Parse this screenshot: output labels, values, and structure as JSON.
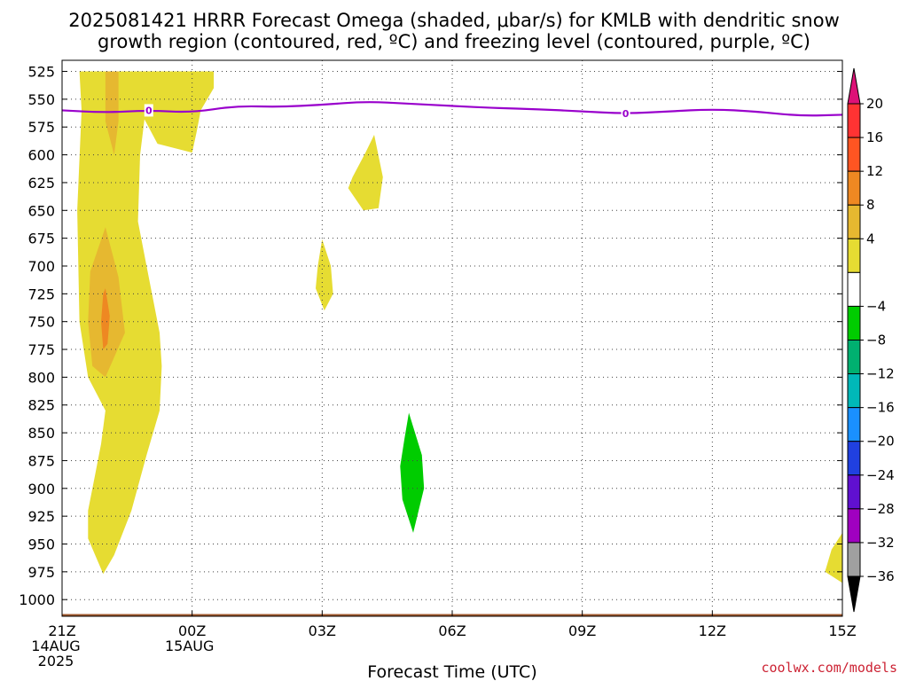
{
  "chart_data": {
    "type": "heatmap",
    "title": "2025081421 HRRR Forecast Omega (shaded, μbar/s) for KMLB with dendritic snow growth region (contoured, red, ºC) and freezing level (contoured, purple, ºC)",
    "title_lines": [
      "2025081421 HRRR Forecast Omega (shaded, μbar/s) for KMLB with dendritic snow",
      "growth region (contoured, red, ºC) and freezing level (contoured, purple, ºC)"
    ],
    "xlabel": "Forecast Time (UTC)",
    "ylabel": "",
    "x_range_hours": [
      0,
      18
    ],
    "y_range_hpa": [
      515,
      1015
    ],
    "y_axis": "pressure (hPa), inverted",
    "x_ticks": [
      {
        "hour": 0,
        "lines": [
          "21Z",
          "14AUG",
          "2025"
        ]
      },
      {
        "hour": 3,
        "lines": [
          "00Z",
          "15AUG"
        ]
      },
      {
        "hour": 6,
        "lines": [
          "03Z"
        ]
      },
      {
        "hour": 9,
        "lines": [
          "06Z"
        ]
      },
      {
        "hour": 12,
        "lines": [
          "09Z"
        ]
      },
      {
        "hour": 15,
        "lines": [
          "12Z"
        ]
      },
      {
        "hour": 18,
        "lines": [
          "15Z"
        ]
      }
    ],
    "y_ticks": [
      525,
      550,
      575,
      600,
      625,
      650,
      675,
      700,
      725,
      750,
      775,
      800,
      825,
      850,
      875,
      900,
      925,
      950,
      975,
      1000
    ],
    "grid": "dotted",
    "legend": "colorbar right",
    "colorbar": {
      "labels": [
        "20",
        "16",
        "12",
        "8",
        "4",
        "−4",
        "−8",
        "−12",
        "−16",
        "−20",
        "−24",
        "−28",
        "−32",
        "−36"
      ],
      "colors_top_to_bottom": [
        "#dd1177",
        "#ff3333",
        "#ff5522",
        "#ee8822",
        "#e6b830",
        "#e6dc32",
        "#ffffff",
        "#00cc00",
        "#00b070",
        "#00b8b8",
        "#1a90ff",
        "#2040e0",
        "#6010d0",
        "#a000c0",
        "#a0a0a0",
        "#000000"
      ]
    },
    "omega_regions": [
      {
        "level": "4 to 8",
        "color": "#e6dc32",
        "polygon": [
          [
            0.4,
            525
          ],
          [
            3.5,
            525
          ],
          [
            3.5,
            540
          ],
          [
            3.2,
            560
          ],
          [
            3.1,
            580
          ],
          [
            3.0,
            598
          ],
          [
            2.2,
            590
          ],
          [
            1.9,
            568
          ],
          [
            1.8,
            600
          ],
          [
            1.75,
            660
          ],
          [
            1.95,
            700
          ],
          [
            2.25,
            760
          ],
          [
            2.3,
            790
          ],
          [
            2.25,
            830
          ],
          [
            1.95,
            870
          ],
          [
            1.6,
            920
          ],
          [
            1.2,
            960
          ],
          [
            0.95,
            977
          ],
          [
            0.6,
            945
          ],
          [
            0.6,
            920
          ],
          [
            0.75,
            890
          ],
          [
            0.9,
            860
          ],
          [
            1.0,
            830
          ],
          [
            0.6,
            800
          ],
          [
            0.4,
            750
          ],
          [
            0.35,
            650
          ],
          [
            0.45,
            560
          ]
        ]
      },
      {
        "level": "4 to 8",
        "color": "#e6dc32",
        "polygon": [
          [
            7.2,
            582
          ],
          [
            7.4,
            620
          ],
          [
            7.3,
            648
          ],
          [
            6.95,
            650
          ],
          [
            6.6,
            630
          ],
          [
            6.7,
            620
          ],
          [
            7.0,
            598
          ]
        ]
      },
      {
        "level": "4 to 8",
        "color": "#e6dc32",
        "polygon": [
          [
            6.0,
            676
          ],
          [
            6.2,
            700
          ],
          [
            6.25,
            725
          ],
          [
            6.05,
            740
          ],
          [
            5.85,
            720
          ],
          [
            5.9,
            700
          ]
        ]
      },
      {
        "level": "4 to 8",
        "color": "#e6dc32",
        "polygon": [
          [
            18.0,
            940
          ],
          [
            18.0,
            985
          ],
          [
            17.6,
            975
          ],
          [
            17.75,
            955
          ]
        ]
      },
      {
        "level": "8 to 12",
        "color": "#e6b830",
        "polygon": [
          [
            1.0,
            525
          ],
          [
            1.3,
            525
          ],
          [
            1.3,
            570
          ],
          [
            1.2,
            600
          ],
          [
            1.0,
            570
          ],
          [
            1.0,
            540
          ]
        ]
      },
      {
        "level": "8 to 12",
        "color": "#e6b830",
        "polygon": [
          [
            1.0,
            665
          ],
          [
            1.3,
            710
          ],
          [
            1.45,
            760
          ],
          [
            1.0,
            800
          ],
          [
            0.7,
            790
          ],
          [
            0.6,
            750
          ],
          [
            0.65,
            705
          ]
        ]
      },
      {
        "level": "12 to 16",
        "color": "#ee8822",
        "polygon": [
          [
            1.0,
            720
          ],
          [
            1.1,
            745
          ],
          [
            1.05,
            770
          ],
          [
            0.95,
            775
          ],
          [
            0.9,
            750
          ],
          [
            0.95,
            725
          ]
        ]
      },
      {
        "level": "-4 to -8",
        "color": "#00cc00",
        "polygon": [
          [
            8.0,
            832
          ],
          [
            8.3,
            870
          ],
          [
            8.35,
            900
          ],
          [
            8.1,
            940
          ],
          [
            7.85,
            910
          ],
          [
            7.8,
            880
          ],
          [
            7.9,
            855
          ]
        ]
      }
    ],
    "freezing_level_0C": {
      "color": "#9900cc",
      "label": "0",
      "points": [
        [
          0,
          560
        ],
        [
          1,
          562
        ],
        [
          2,
          560
        ],
        [
          3,
          562
        ],
        [
          4,
          556
        ],
        [
          5,
          557
        ],
        [
          6,
          555
        ],
        [
          7,
          552
        ],
        [
          8,
          554
        ],
        [
          9,
          556
        ],
        [
          10,
          558
        ],
        [
          11,
          559
        ],
        [
          12,
          561
        ],
        [
          13,
          563
        ],
        [
          14,
          561
        ],
        [
          15,
          559
        ],
        [
          16,
          561
        ],
        [
          17,
          565
        ],
        [
          18,
          564
        ]
      ]
    },
    "terrain_bar": {
      "color": "#a0582c",
      "pressure_hpa": 1013
    }
  },
  "credit": "coolwx.com/models"
}
